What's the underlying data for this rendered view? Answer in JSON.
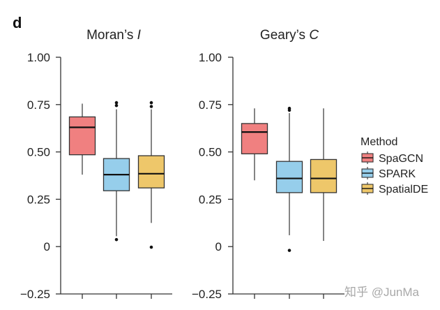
{
  "panel_label": "d",
  "colors": {
    "SpaGCN": "#F08080",
    "SPARK": "#96CEEB",
    "SpatialDE": "#EEC76A",
    "axis": "#333333",
    "text": "#222222"
  },
  "legend": {
    "title": "Method",
    "items": [
      "SpaGCN",
      "SPARK",
      "SpatialDE"
    ]
  },
  "watermark": "知乎 @JunMa",
  "chart_data": [
    {
      "type": "boxplot",
      "title_prefix": "Moran’s ",
      "title_italic": "I",
      "ylim": [
        -0.25,
        1.0
      ],
      "yticks": [
        "1.00",
        "0.75",
        "0.50",
        "0.25",
        "0",
        "−0.25"
      ],
      "ytick_values": [
        1.0,
        0.75,
        0.5,
        0.25,
        0,
        -0.25
      ],
      "series": [
        {
          "name": "SpaGCN",
          "whisker_low": 0.38,
          "q1": 0.485,
          "median": 0.63,
          "q3": 0.685,
          "whisker_high": 0.755,
          "outliers": []
        },
        {
          "name": "SPARK",
          "whisker_low": 0.055,
          "q1": 0.295,
          "median": 0.38,
          "q3": 0.465,
          "whisker_high": 0.725,
          "outliers": [
            0.037,
            0.745,
            0.76
          ]
        },
        {
          "name": "SpatialDE",
          "whisker_low": 0.125,
          "q1": 0.31,
          "median": 0.385,
          "q3": 0.48,
          "whisker_high": 0.725,
          "outliers": [
            -0.003,
            0.74,
            0.76
          ]
        }
      ]
    },
    {
      "type": "boxplot",
      "title_prefix": "Geary’s ",
      "title_italic": "C",
      "ylim": [
        -0.25,
        1.0
      ],
      "yticks": [
        "1.00",
        "0.75",
        "0.50",
        "0.25",
        "0",
        "−0.25"
      ],
      "ytick_values": [
        1.0,
        0.75,
        0.5,
        0.25,
        0,
        -0.25
      ],
      "series": [
        {
          "name": "SpaGCN",
          "whisker_low": 0.35,
          "q1": 0.49,
          "median": 0.605,
          "q3": 0.65,
          "whisker_high": 0.73,
          "outliers": []
        },
        {
          "name": "SPARK",
          "whisker_low": 0.06,
          "q1": 0.285,
          "median": 0.36,
          "q3": 0.45,
          "whisker_high": 0.705,
          "outliers": [
            -0.02,
            0.72,
            0.73
          ]
        },
        {
          "name": "SpatialDE",
          "whisker_low": 0.03,
          "q1": 0.285,
          "median": 0.36,
          "q3": 0.46,
          "whisker_high": 0.73,
          "outliers": []
        }
      ]
    }
  ]
}
